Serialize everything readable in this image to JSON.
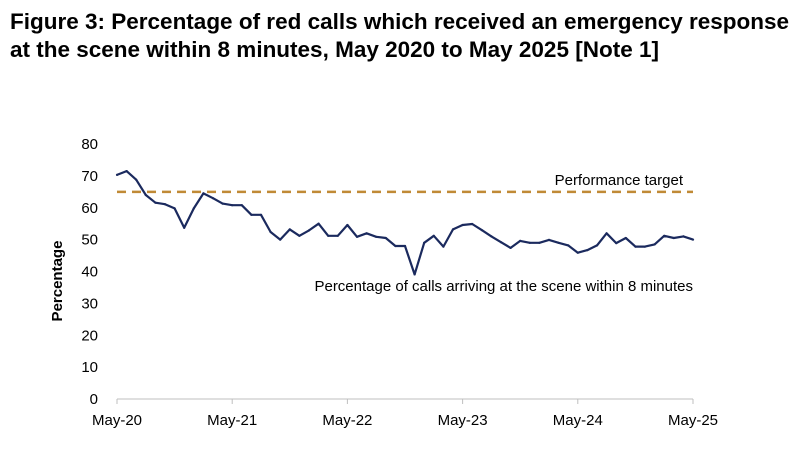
{
  "chart_data": {
    "type": "line",
    "title": "Figure 3: Percentage of red calls which received an emergency response at the scene within 8 minutes, May 2020 to May 2025 [Note 1]",
    "xlabel": "",
    "ylabel": "Percentage",
    "ylim": [
      0,
      80
    ],
    "yticks": [
      0,
      10,
      20,
      30,
      40,
      50,
      60,
      70,
      80
    ],
    "xtick_labels": [
      "May-20",
      "May-21",
      "May-22",
      "May-23",
      "May-24",
      "May-25"
    ],
    "x_start": "May-20",
    "x_end": "May-25",
    "grid": false,
    "legend": "none",
    "series": [
      {
        "name": "Percentage of calls arriving at the scene within 8 minutes",
        "color": "#1b2a5e",
        "values": [
          70.3,
          71.5,
          68.8,
          64.0,
          61.6,
          61.1,
          59.8,
          53.7,
          59.8,
          64.5,
          63.0,
          61.3,
          60.8,
          60.8,
          57.8,
          57.8,
          52.4,
          50.0,
          53.2,
          51.2,
          52.9,
          55.0,
          51.2,
          51.2,
          54.6,
          50.9,
          52.0,
          50.9,
          50.5,
          48.0,
          48.0,
          39.1,
          49.0,
          51.2,
          47.8,
          53.2,
          54.6,
          54.9,
          53.0,
          51.0,
          49.2,
          47.4,
          49.6,
          49.0,
          49.0,
          49.9,
          49.0,
          48.2,
          45.9,
          46.7,
          48.2,
          52.0,
          48.9,
          50.5,
          47.8,
          47.8,
          48.5,
          51.2,
          50.5,
          51.0,
          50.0
        ]
      }
    ],
    "reference_line": {
      "label": "Performance target",
      "value": 65,
      "color": "#c08a36"
    },
    "series_annotation": "Percentage of calls arriving at the scene within 8 minutes"
  }
}
